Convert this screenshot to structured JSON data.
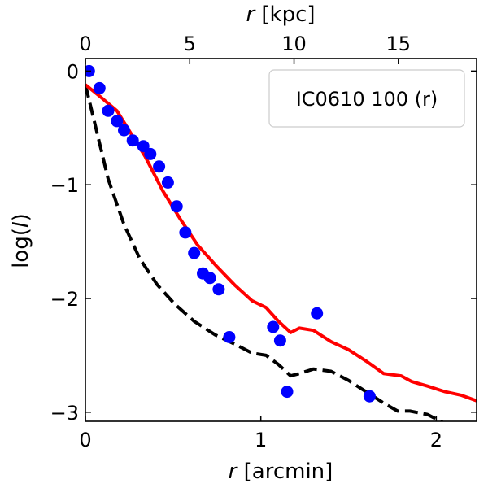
{
  "chart_data": {
    "type": "scatter",
    "title": "",
    "xlabel_var": "r",
    "xlabel_unit": " [arcmin]",
    "x2label_var": "r",
    "x2label_unit": " [kpc]",
    "ylabel_prefix": "log(",
    "ylabel_var": "I",
    "ylabel_suffix": ")",
    "xlim": [
      0,
      2.23
    ],
    "ylim": [
      -3.08,
      0.11
    ],
    "x2lim": [
      0,
      18.75
    ],
    "xticks": [
      0,
      1,
      2
    ],
    "xtick_labels": [
      "0",
      "1",
      "2"
    ],
    "x2ticks": [
      0,
      5,
      10,
      15
    ],
    "x2tick_labels": [
      "0",
      "5",
      "10",
      "15"
    ],
    "yticks": [
      0,
      -1,
      -2,
      -3
    ],
    "ytick_labels": [
      "0",
      "−1",
      "−2",
      "−3"
    ],
    "legend": {
      "text": "IC0610 100 (r)",
      "position": "top-right"
    },
    "colors": {
      "points": "#0000ff",
      "model_line": "#ff0000",
      "psf_line": "#000000"
    },
    "series": [
      {
        "name": "data",
        "kind": "points",
        "x": [
          0.02,
          0.08,
          0.13,
          0.18,
          0.22,
          0.27,
          0.33,
          0.37,
          0.42,
          0.47,
          0.52,
          0.57,
          0.62,
          0.67,
          0.71,
          0.76,
          0.82,
          1.07,
          1.11,
          1.15,
          1.32,
          1.62
        ],
        "y": [
          0.0,
          -0.15,
          -0.35,
          -0.44,
          -0.52,
          -0.61,
          -0.66,
          -0.73,
          -0.84,
          -0.98,
          -1.19,
          -1.42,
          -1.6,
          -1.78,
          -1.82,
          -1.92,
          -2.34,
          -2.25,
          -2.37,
          -2.82,
          -2.13,
          -2.86
        ]
      },
      {
        "name": "model",
        "kind": "solid-line",
        "x": [
          0.0,
          0.08,
          0.18,
          0.24,
          0.34,
          0.44,
          0.54,
          0.64,
          0.75,
          0.85,
          0.95,
          1.03,
          1.1,
          1.17,
          1.22,
          1.3,
          1.4,
          1.5,
          1.6,
          1.7,
          1.8,
          1.86,
          1.95,
          2.05,
          2.14,
          2.23
        ],
        "y": [
          -0.12,
          -0.22,
          -0.35,
          -0.5,
          -0.75,
          -1.05,
          -1.3,
          -1.53,
          -1.72,
          -1.88,
          -2.02,
          -2.08,
          -2.2,
          -2.3,
          -2.26,
          -2.28,
          -2.38,
          -2.45,
          -2.55,
          -2.66,
          -2.68,
          -2.73,
          -2.77,
          -2.82,
          -2.85,
          -2.9
        ]
      },
      {
        "name": "psf",
        "kind": "dashed-line",
        "x": [
          0.0,
          0.06,
          0.13,
          0.22,
          0.31,
          0.41,
          0.51,
          0.62,
          0.74,
          0.85,
          0.95,
          1.03,
          1.1,
          1.17,
          1.22,
          1.3,
          1.4,
          1.5,
          1.6,
          1.7,
          1.78,
          1.85,
          1.95,
          2.05
        ],
        "y": [
          -0.12,
          -0.5,
          -0.95,
          -1.35,
          -1.65,
          -1.88,
          -2.05,
          -2.2,
          -2.32,
          -2.4,
          -2.48,
          -2.5,
          -2.58,
          -2.68,
          -2.66,
          -2.62,
          -2.64,
          -2.72,
          -2.82,
          -2.92,
          -2.99,
          -2.99,
          -3.02,
          -3.1
        ]
      }
    ]
  }
}
